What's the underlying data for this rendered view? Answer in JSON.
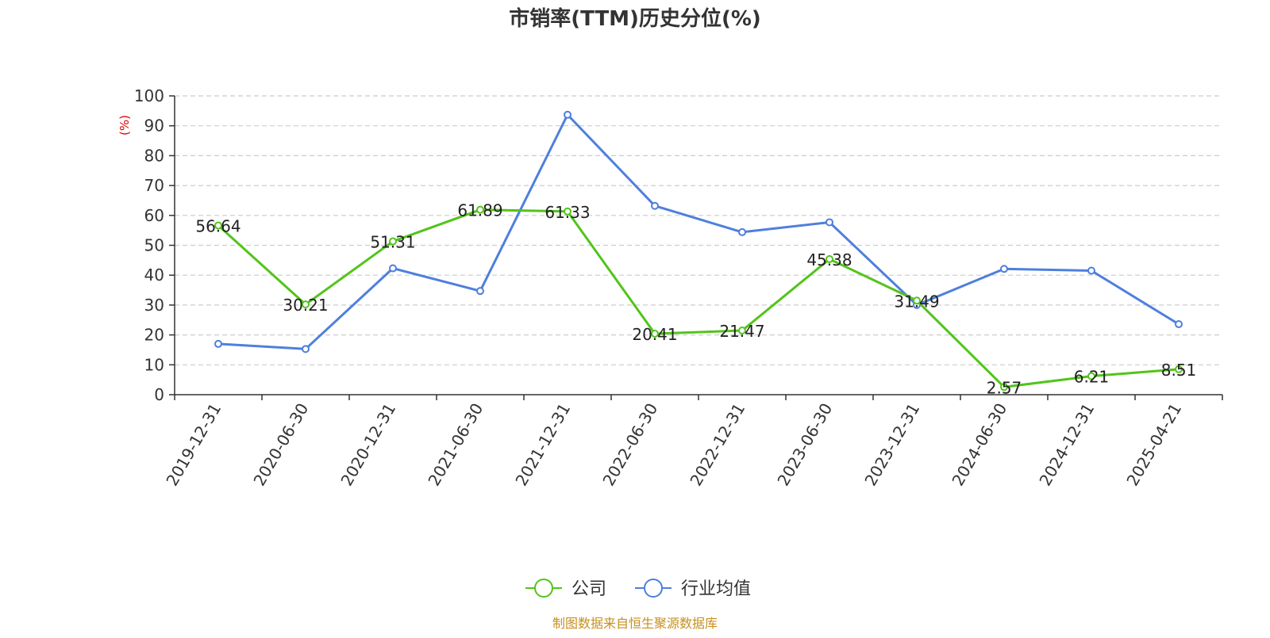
{
  "chart_data": {
    "type": "line",
    "title": "市销率(TTM)历史分位(%)",
    "ylabel": "(%)",
    "xlabel": "",
    "ylim": [
      0,
      100
    ],
    "yticks": [
      0,
      10,
      20,
      30,
      40,
      50,
      60,
      70,
      80,
      90,
      100
    ],
    "grid": true,
    "legend_position": "bottom",
    "categories": [
      "2019-12-31",
      "2020-06-30",
      "2020-12-31",
      "2021-06-30",
      "2021-12-31",
      "2022-06-30",
      "2022-12-31",
      "2023-06-30",
      "2023-12-31",
      "2024-06-30",
      "2024-12-31",
      "2025-04-21"
    ],
    "series": [
      {
        "name": "公司",
        "color": "#52c41a",
        "values": [
          56.64,
          30.21,
          51.31,
          61.89,
          61.33,
          20.41,
          21.47,
          45.38,
          31.49,
          2.57,
          6.21,
          8.51
        ],
        "show_labels": true
      },
      {
        "name": "行业均值",
        "color": "#4e7fdd",
        "values": [
          17.0,
          15.3,
          42.3,
          34.7,
          93.7,
          63.2,
          54.4,
          57.7,
          30.0,
          42.1,
          41.5,
          23.6
        ],
        "show_labels": false
      }
    ],
    "source": "制图数据来自恒生聚源数据库"
  }
}
